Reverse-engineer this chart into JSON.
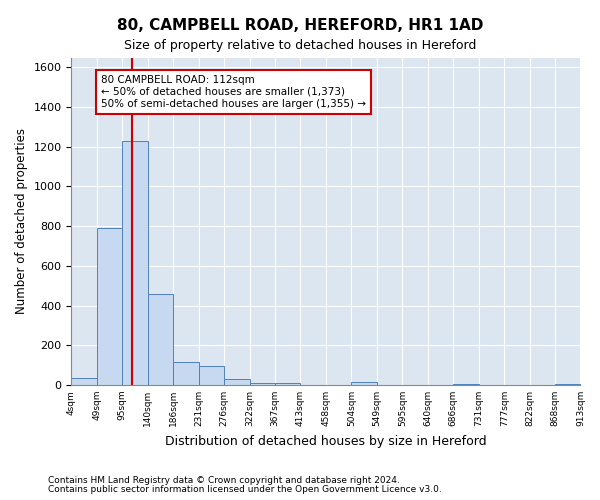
{
  "title": "80, CAMPBELL ROAD, HEREFORD, HR1 1AD",
  "subtitle": "Size of property relative to detached houses in Hereford",
  "xlabel": "Distribution of detached houses by size in Hereford",
  "ylabel": "Number of detached properties",
  "bar_color": "#c6d9f0",
  "bar_edge_color": "#4f81bd",
  "bg_color": "#dce6f1",
  "grid_color": "#ffffff",
  "redline_x": 112,
  "annotation_text": "80 CAMPBELL ROAD: 112sqm\n← 50% of detached houses are smaller (1,373)\n50% of semi-detached houses are larger (1,355) →",
  "annotation_box_color": "#cc0000",
  "bin_edges": [
    4,
    49,
    95,
    140,
    186,
    231,
    276,
    322,
    367,
    413,
    458,
    504,
    549,
    595,
    640,
    686,
    731,
    777,
    822,
    868,
    913
  ],
  "bar_heights": [
    35,
    790,
    1230,
    460,
    115,
    95,
    30,
    10,
    8,
    0,
    0,
    15,
    0,
    0,
    0,
    5,
    0,
    0,
    0,
    5
  ],
  "ylim": [
    0,
    1650
  ],
  "yticks": [
    0,
    200,
    400,
    600,
    800,
    1000,
    1200,
    1400,
    1600
  ],
  "footnote1": "Contains HM Land Registry data © Crown copyright and database right 2024.",
  "footnote2": "Contains public sector information licensed under the Open Government Licence v3.0."
}
